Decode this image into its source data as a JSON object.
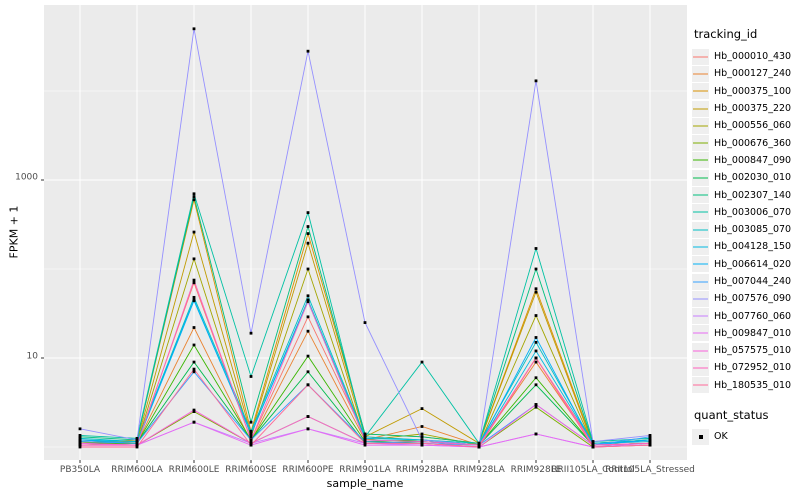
{
  "chart_data": {
    "type": "line",
    "xlabel": "sample_name",
    "ylabel": "FPKM + 1",
    "y_scale": "log10",
    "ylim": [
      1,
      100000
    ],
    "y_ticks": [
      {
        "value": 10,
        "label": "10"
      },
      {
        "value": 1000,
        "label": "1000"
      }
    ],
    "y_minor_ticks": [
      1,
      100,
      10000
    ],
    "grid": true,
    "panel_bg": "#EBEBEB",
    "grid_color": "#FFFFFF",
    "point_color": "#000000",
    "point_shape": "square",
    "legend_position": "right",
    "categories": [
      "PB350LA",
      "RRIM600LA",
      "RRIM600LE",
      "RRIM600SE",
      "RRIM600PE",
      "RRIM901LA",
      "RRIM928BA",
      "RRIM928LA",
      "RRIM928LE",
      "RRII105LA_Control",
      "RRII105LA_Stressed"
    ],
    "series": [
      {
        "name": "Hb_000010_430",
        "color": "#F8766D",
        "values": [
          1.2,
          1.1,
          70,
          1.2,
          29,
          1.3,
          1.2,
          1.05,
          10,
          1.1,
          1.15
        ]
      },
      {
        "name": "Hb_000127_240",
        "color": "#EA8331",
        "values": [
          1.15,
          1.1,
          22,
          1.15,
          20,
          1.2,
          1.7,
          1.05,
          9,
          1.05,
          1.1
        ]
      },
      {
        "name": "Hb_000375_100",
        "color": "#D89000",
        "values": [
          1.1,
          1.2,
          600,
          1.5,
          250,
          1.4,
          1.3,
          1.1,
          60,
          1.1,
          1.2
        ]
      },
      {
        "name": "Hb_000375_220",
        "color": "#C09B00",
        "values": [
          1.1,
          1.15,
          260,
          1.4,
          195,
          1.3,
          2.7,
          1.1,
          55,
          1.05,
          1.1
        ]
      },
      {
        "name": "Hb_000556_060",
        "color": "#A3A500",
        "values": [
          1.05,
          1.1,
          130,
          1.3,
          100,
          1.2,
          1.4,
          1.05,
          30,
          1.05,
          1.1
        ]
      },
      {
        "name": "Hb_000676_360",
        "color": "#7CAE00",
        "values": [
          1.1,
          1.05,
          2.5,
          1.1,
          2.2,
          1.1,
          1.1,
          1.0,
          2.8,
          1.0,
          1.05
        ]
      },
      {
        "name": "Hb_000847_090",
        "color": "#39B600",
        "values": [
          1.1,
          1.1,
          14,
          1.2,
          10.5,
          1.15,
          1.2,
          1.05,
          6,
          1.05,
          1.1
        ]
      },
      {
        "name": "Hb_002030_010",
        "color": "#00BB4E",
        "values": [
          1.15,
          1.1,
          9,
          1.2,
          7,
          1.1,
          1.15,
          1.05,
          5,
          1.05,
          1.1
        ]
      },
      {
        "name": "Hb_002307_140",
        "color": "#00BF7D",
        "values": [
          1.3,
          1.2,
          650,
          1.9,
          300,
          1.4,
          1.3,
          1.1,
          100,
          1.1,
          1.2
        ]
      },
      {
        "name": "Hb_003006_070",
        "color": "#00C1A3",
        "values": [
          1.35,
          1.25,
          700,
          6.2,
          430,
          1.3,
          9,
          1.1,
          170,
          1.15,
          1.25
        ]
      },
      {
        "name": "Hb_003085_070",
        "color": "#00BFC4",
        "values": [
          1.25,
          1.15,
          48,
          1.5,
          50,
          1.3,
          1.2,
          1.1,
          15,
          1.1,
          1.2
        ]
      },
      {
        "name": "Hb_004128_150",
        "color": "#00BAE0",
        "values": [
          1.2,
          1.15,
          45,
          1.4,
          45,
          1.25,
          1.2,
          1.05,
          12,
          1.1,
          1.15
        ]
      },
      {
        "name": "Hb_006614_020",
        "color": "#00B0F6",
        "values": [
          1.2,
          1.1,
          44,
          1.4,
          43,
          1.2,
          1.15,
          1.05,
          17,
          1.05,
          1.2
        ]
      },
      {
        "name": "Hb_007044_240",
        "color": "#35A2FF",
        "values": [
          1.15,
          1.1,
          7,
          1.2,
          5,
          1.15,
          1.1,
          1.05,
          3,
          1.05,
          1.3
        ]
      },
      {
        "name": "Hb_007576_090",
        "color": "#9590FF",
        "values": [
          1.6,
          1.2,
          50000,
          19,
          28000,
          25,
          1.2,
          1.05,
          13000,
          1.15,
          1.35
        ]
      },
      {
        "name": "Hb_007760_060",
        "color": "#C77CFF",
        "values": [
          1.1,
          1.05,
          1.9,
          1.1,
          1.6,
          1.1,
          1.05,
          1.0,
          1.4,
          1.0,
          1.1
        ]
      },
      {
        "name": "Hb_009847_010",
        "color": "#E76BF3",
        "values": [
          1.05,
          1.05,
          1.9,
          1.05,
          1.6,
          1.05,
          1.05,
          1.0,
          1.4,
          1.0,
          1.05
        ]
      },
      {
        "name": "Hb_057575_010",
        "color": "#FA62DB",
        "values": [
          1.1,
          1.05,
          2.6,
          1.1,
          2.2,
          1.1,
          1.1,
          1.0,
          3,
          1.05,
          1.1
        ]
      },
      {
        "name": "Hb_072952_010",
        "color": "#FF62BC",
        "values": [
          1.05,
          1.05,
          75,
          1.2,
          43,
          1.2,
          1.15,
          1.05,
          10,
          1.05,
          1.1
        ]
      },
      {
        "name": "Hb_180535_010",
        "color": "#FF6A98",
        "values": [
          1.0,
          1.0,
          7.5,
          1.05,
          5,
          1.1,
          1.1,
          1.0,
          10,
          1.0,
          1.05
        ]
      }
    ],
    "legend_title": "tracking_id",
    "quant_legend": {
      "title": "quant_status",
      "items": [
        {
          "label": "OK",
          "symbol": "black-square"
        }
      ]
    }
  }
}
